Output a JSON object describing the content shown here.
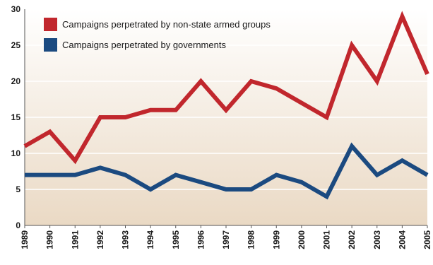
{
  "chart_data": {
    "type": "line",
    "title": "",
    "xlabel": "",
    "ylabel": "",
    "categories": [
      "1989",
      "1990",
      "1991",
      "1992",
      "1993",
      "1994",
      "1995",
      "1996",
      "1997",
      "1998",
      "1999",
      "2000",
      "2001",
      "2002",
      "2003",
      "2004",
      "2005"
    ],
    "ylim": [
      0,
      30
    ],
    "yticks": [
      0,
      5,
      10,
      15,
      20,
      25,
      30
    ],
    "grid": true,
    "legend_position": "top-left",
    "series": [
      {
        "name": "Campaigns perpetrated by non-state armed groups",
        "color": "#c1272d",
        "values": [
          11,
          13,
          9,
          15,
          15,
          16,
          16,
          20,
          16,
          20,
          19,
          17,
          15,
          25,
          20,
          29,
          21
        ]
      },
      {
        "name": "Campaigns perpetrated by governments",
        "color": "#1b4a80",
        "values": [
          7,
          7,
          7,
          8,
          7,
          5,
          7,
          6,
          5,
          5,
          7,
          6,
          4,
          11,
          7,
          9,
          7
        ]
      }
    ],
    "background_gradient": [
      "#ffffff",
      "#ead9c4"
    ],
    "grid_color": "#ffffff",
    "axis_color": "#555555"
  }
}
